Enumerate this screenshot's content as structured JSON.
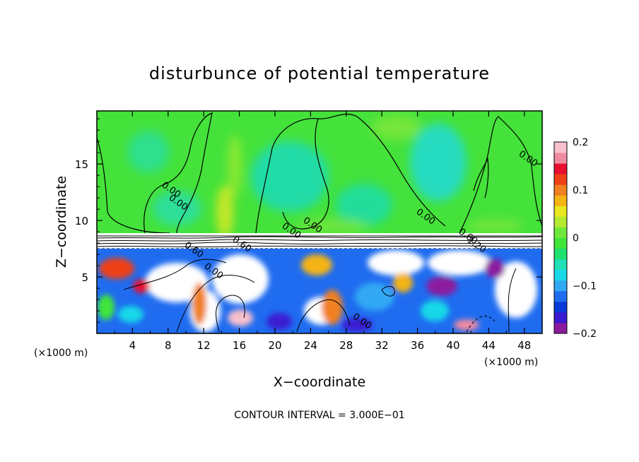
{
  "chart_data": {
    "type": "heatmap",
    "title": "disturbunce of potential temperature",
    "xlabel": "X−coordinate",
    "ylabel": "Z−coordinate",
    "x_unit_left": "(×1000 m)",
    "x_unit_right": "(×1000 m)",
    "xlim": [
      0,
      50
    ],
    "ylim": [
      0,
      19.7
    ],
    "x_ticks": [
      4,
      8,
      12,
      16,
      20,
      24,
      28,
      32,
      36,
      40,
      44,
      48
    ],
    "y_ticks": [
      5,
      10,
      15
    ],
    "x_tick_labels": [
      "4",
      "8",
      "12",
      "16",
      "20",
      "24",
      "28",
      "32",
      "36",
      "40",
      "44",
      "48"
    ],
    "y_tick_labels": [
      "5",
      "10",
      "15"
    ],
    "colorbar": {
      "range": [
        -0.2,
        0.2
      ],
      "ticks": [
        0.2,
        0.1,
        0,
        -0.1,
        -0.2
      ],
      "tick_labels": [
        "0.2",
        "0.1",
        "0",
        "−0.1",
        "−0.2"
      ],
      "colors": [
        "#8b1a9e",
        "#3a1ad1",
        "#0a3ad8",
        "#1f6cf0",
        "#30a8f4",
        "#19d8e8",
        "#22e0b8",
        "#20e070",
        "#40e53a",
        "#70e83a",
        "#b4ea30",
        "#e8e820",
        "#f4b414",
        "#f08020",
        "#f04018",
        "#e81030",
        "#f08aa0",
        "#f8c0cc"
      ]
    },
    "contour_labels": [
      "0.00",
      "0.00",
      "0.00",
      "0.00",
      "0.00",
      "0.00",
      "0.60",
      "0.60",
      "1.20",
      "0.60",
      "0.00",
      "0.00"
    ],
    "grid": false,
    "legend": "colorbar on right"
  },
  "footer": {
    "contour_interval": "CONTOUR INTERVAL = 3.000E−01"
  }
}
